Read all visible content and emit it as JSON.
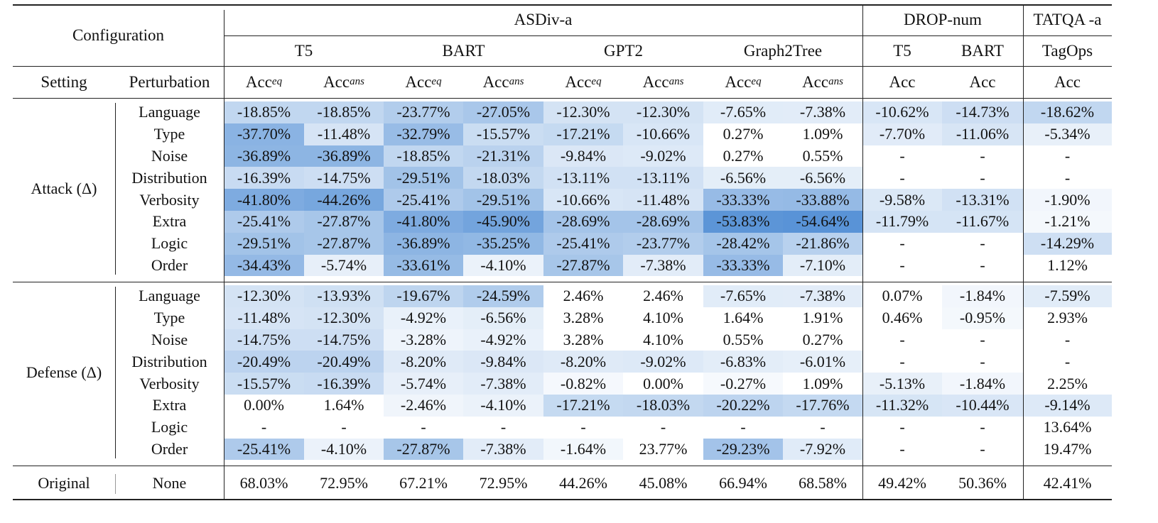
{
  "headers": {
    "configuration": "Configuration",
    "setting": "Setting",
    "perturbation": "Perturbation",
    "datasets": [
      "ASDiv-a",
      "DROP-num",
      "TATQA -a"
    ],
    "models": [
      "T5",
      "BART",
      "GPT2",
      "Graph2Tree",
      "T5",
      "BART",
      "TagOps"
    ],
    "metrics": [
      {
        "base": "Acc",
        "sub": "eq"
      },
      {
        "base": "Acc",
        "sub": "ans"
      },
      {
        "base": "Acc",
        "sub": "eq"
      },
      {
        "base": "Acc",
        "sub": "ans"
      },
      {
        "base": "Acc",
        "sub": "eq"
      },
      {
        "base": "Acc",
        "sub": "ans"
      },
      {
        "base": "Acc",
        "sub": "eq"
      },
      {
        "base": "Acc",
        "sub": "ans"
      },
      {
        "base": "Acc",
        "sub": ""
      },
      {
        "base": "Acc",
        "sub": ""
      },
      {
        "base": "Acc",
        "sub": ""
      }
    ]
  },
  "heat_color": "#3a7fcf",
  "groups": [
    {
      "label": "Attack (Δ)",
      "rows": [
        {
          "perturbation": "Language",
          "values": [
            "-18.85%",
            "-18.85%",
            "-23.77%",
            "-27.05%",
            "-12.30%",
            "-12.30%",
            "-7.65%",
            "-7.38%",
            "-10.62%",
            "-14.73%",
            "-18.62%"
          ]
        },
        {
          "perturbation": "Type",
          "values": [
            "-37.70%",
            "-11.48%",
            "-32.79%",
            "-15.57%",
            "-17.21%",
            "-10.66%",
            "0.27%",
            "1.09%",
            "-7.70%",
            "-11.06%",
            "-5.34%"
          ]
        },
        {
          "perturbation": "Noise",
          "values": [
            "-36.89%",
            "-36.89%",
            "-18.85%",
            "-21.31%",
            "-9.84%",
            "-9.02%",
            "0.27%",
            "0.55%",
            "-",
            "-",
            "-"
          ]
        },
        {
          "perturbation": "Distribution",
          "values": [
            "-16.39%",
            "-14.75%",
            "-29.51%",
            "-18.03%",
            "-13.11%",
            "-13.11%",
            "-6.56%",
            "-6.56%",
            "-",
            "-",
            "-"
          ]
        },
        {
          "perturbation": "Verbosity",
          "values": [
            "-41.80%",
            "-44.26%",
            "-25.41%",
            "-29.51%",
            "-10.66%",
            "-11.48%",
            "-33.33%",
            "-33.88%",
            "-9.58%",
            "-13.31%",
            "-1.90%"
          ]
        },
        {
          "perturbation": "Extra",
          "values": [
            "-25.41%",
            "-27.87%",
            "-41.80%",
            "-45.90%",
            "-28.69%",
            "-28.69%",
            "-53.83%",
            "-54.64%",
            "-11.79%",
            "-11.67%",
            "-1.21%"
          ]
        },
        {
          "perturbation": "Logic",
          "values": [
            "-29.51%",
            "-27.87%",
            "-36.89%",
            "-35.25%",
            "-25.41%",
            "-23.77%",
            "-28.42%",
            "-21.86%",
            "-",
            "-",
            "-14.29%"
          ]
        },
        {
          "perturbation": "Order",
          "values": [
            "-34.43%",
            "-5.74%",
            "-33.61%",
            "-4.10%",
            "-27.87%",
            "-7.38%",
            "-33.33%",
            "-7.10%",
            "-",
            "-",
            "1.12%"
          ]
        }
      ]
    },
    {
      "label": "Defense (Δ)",
      "rows": [
        {
          "perturbation": "Language",
          "values": [
            "-12.30%",
            "-13.93%",
            "-19.67%",
            "-24.59%",
            "2.46%",
            "2.46%",
            "-7.65%",
            "-7.38%",
            "0.07%",
            "-1.84%",
            "-7.59%"
          ]
        },
        {
          "perturbation": "Type",
          "values": [
            "-11.48%",
            "-12.30%",
            "-4.92%",
            "-6.56%",
            "3.28%",
            "4.10%",
            "1.64%",
            "1.91%",
            "0.46%",
            "-0.95%",
            "2.93%"
          ]
        },
        {
          "perturbation": "Noise",
          "values": [
            "-14.75%",
            "-14.75%",
            "-3.28%",
            "-4.92%",
            "3.28%",
            "4.10%",
            "0.55%",
            "0.27%",
            "-",
            "-",
            "-"
          ]
        },
        {
          "perturbation": "Distribution",
          "values": [
            "-20.49%",
            "-20.49%",
            "-8.20%",
            "-9.84%",
            "-8.20%",
            "-9.02%",
            "-6.83%",
            "-6.01%",
            "-",
            "-",
            "-"
          ]
        },
        {
          "perturbation": "Verbosity",
          "values": [
            "-15.57%",
            "-16.39%",
            "-5.74%",
            "-7.38%",
            "-0.82%",
            "0.00%",
            "-0.27%",
            "1.09%",
            "-5.13%",
            "-1.84%",
            "2.25%"
          ]
        },
        {
          "perturbation": "Extra",
          "values": [
            "0.00%",
            "1.64%",
            "-2.46%",
            "-4.10%",
            "-17.21%",
            "-18.03%",
            "-20.22%",
            "-17.76%",
            "-11.32%",
            "-10.44%",
            "-9.14%"
          ]
        },
        {
          "perturbation": "Logic",
          "values": [
            "-",
            "-",
            "-",
            "-",
            "-",
            "-",
            "-",
            "-",
            "-",
            "-",
            "13.64%"
          ]
        },
        {
          "perturbation": "Order",
          "values": [
            "-25.41%",
            "-4.10%",
            "-27.87%",
            "-7.38%",
            "-1.64%",
            "23.77%",
            "-29.23%",
            "-7.92%",
            "-",
            "-",
            "19.47%"
          ]
        }
      ]
    }
  ],
  "original": {
    "setting": "Original",
    "perturbation": "None",
    "values": [
      "68.03%",
      "72.95%",
      "67.21%",
      "72.95%",
      "44.26%",
      "45.08%",
      "66.94%",
      "68.58%",
      "49.42%",
      "50.36%",
      "42.41%"
    ]
  }
}
